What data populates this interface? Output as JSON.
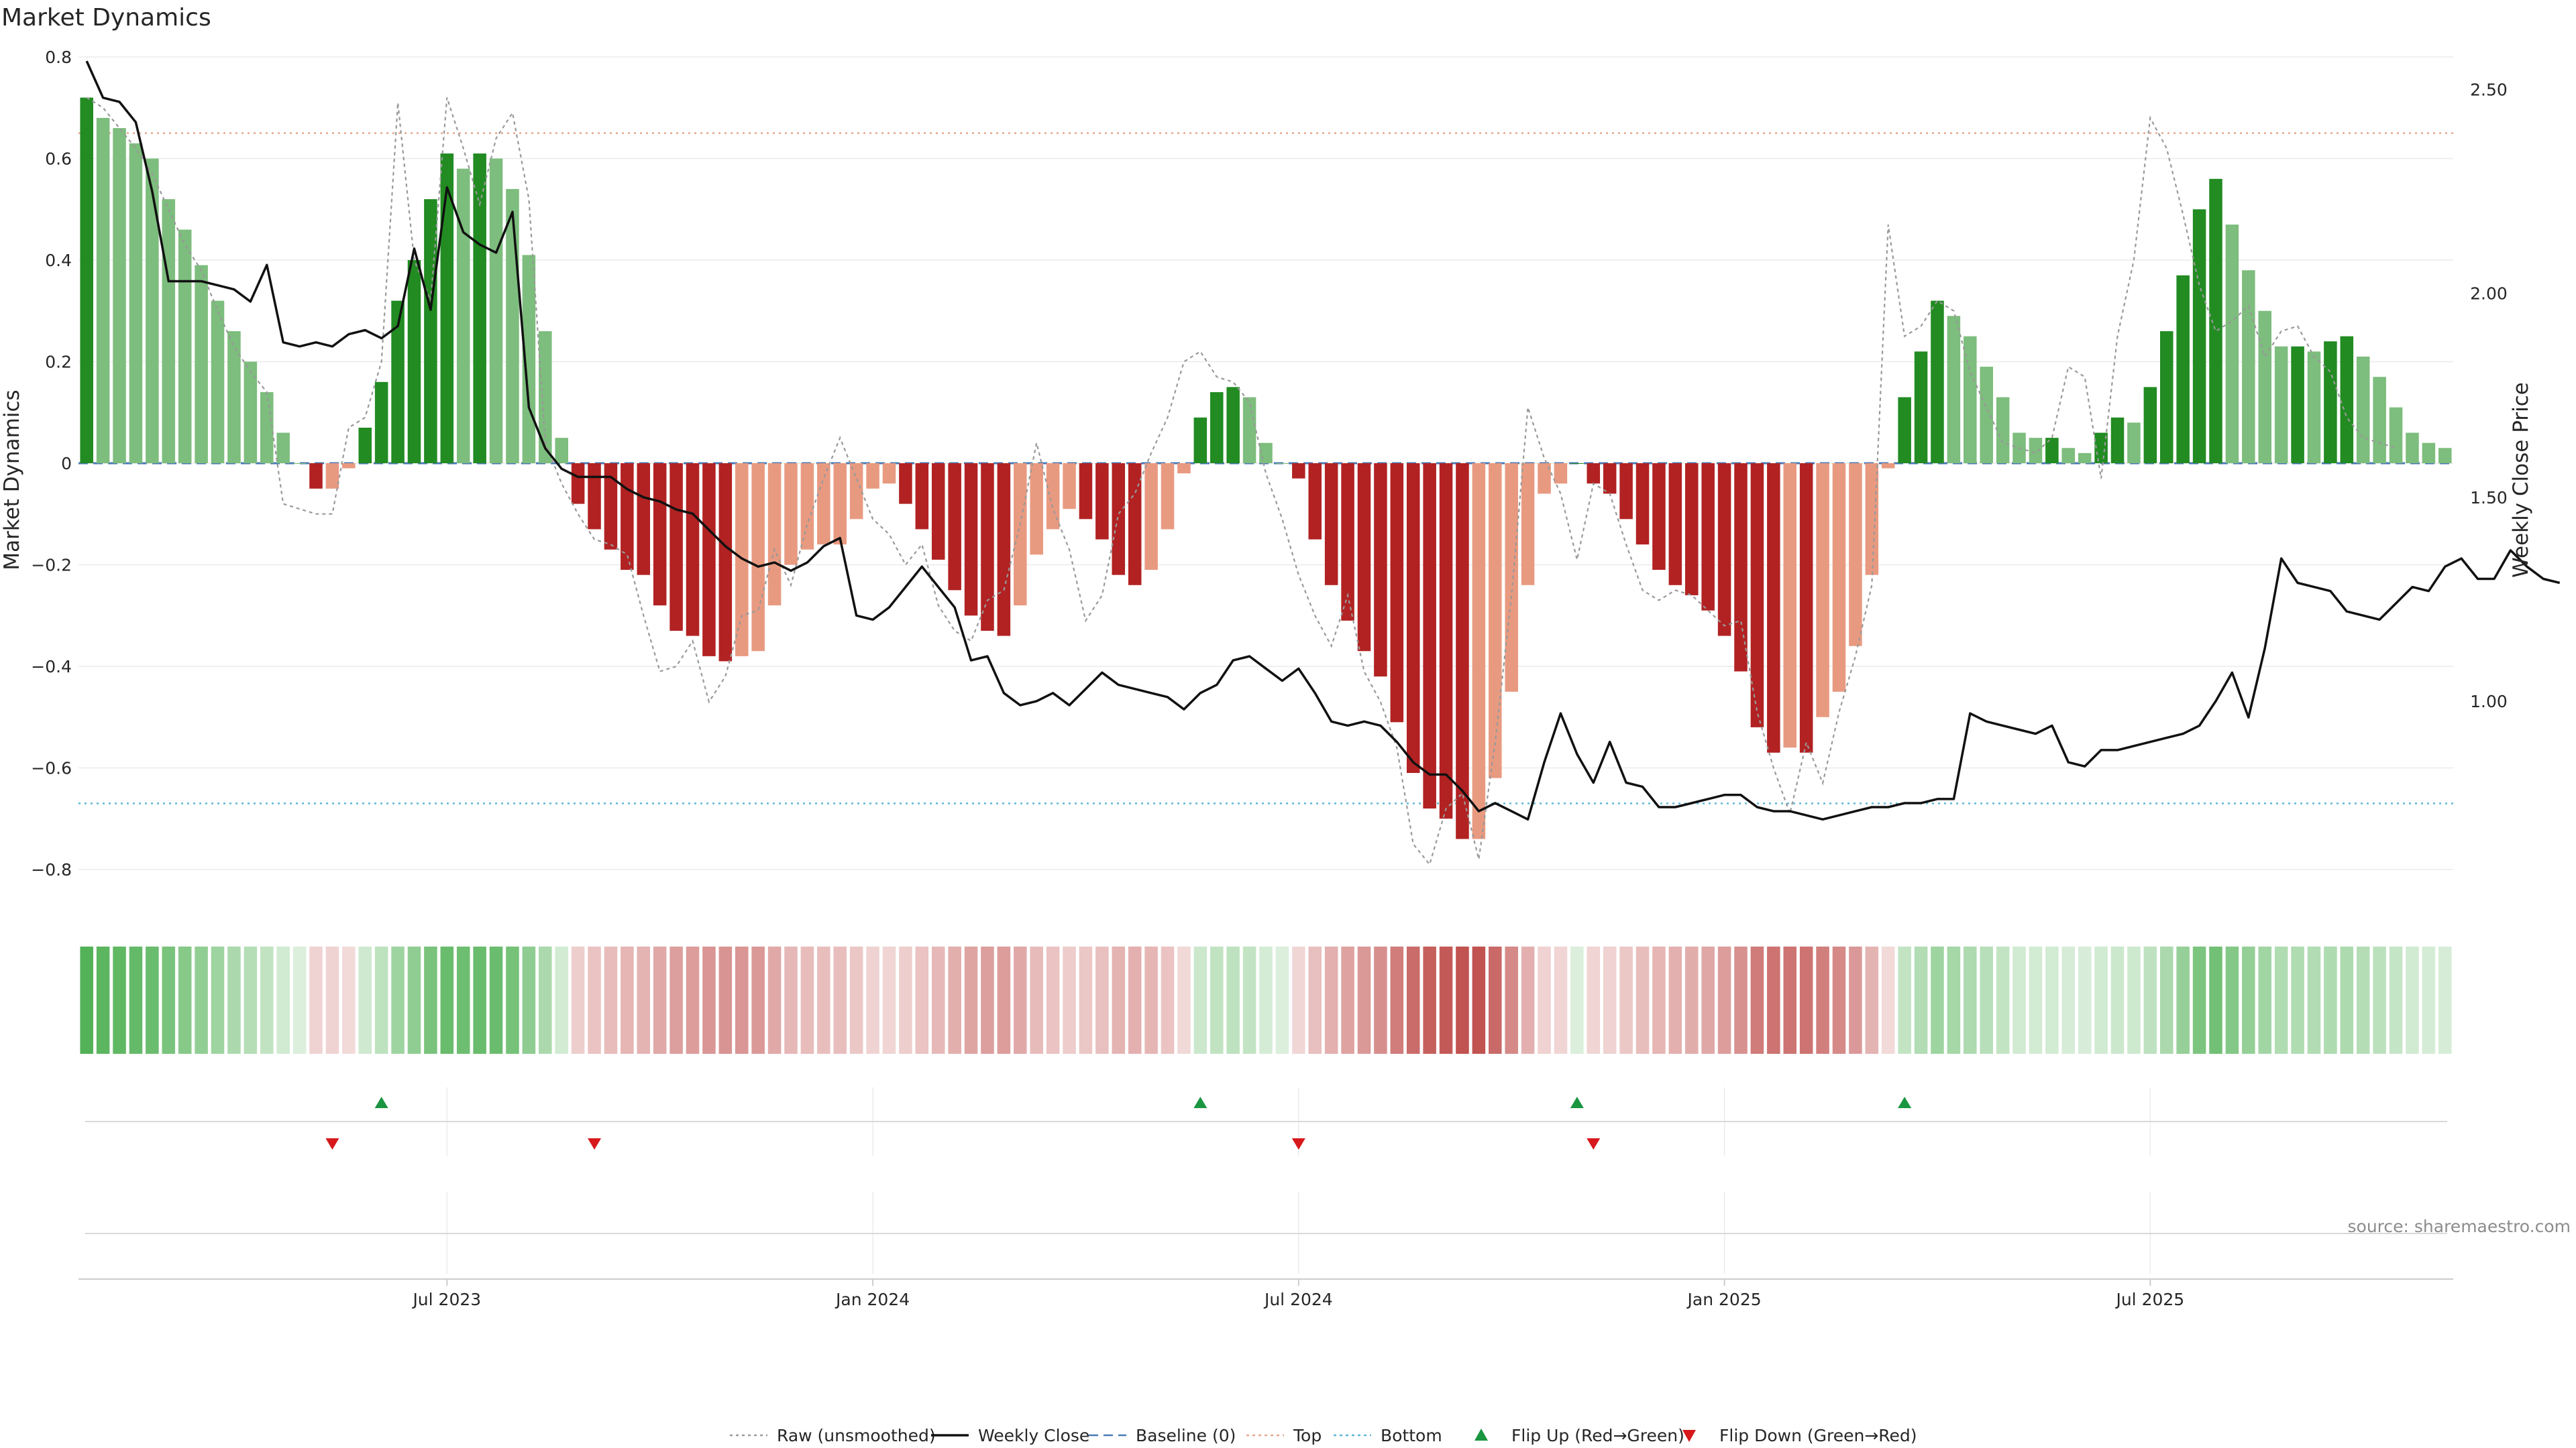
{
  "chart_data": {
    "type": "bar",
    "title": "Market Dynamics",
    "ylabel_left": "Market Dynamics",
    "ylabel_right": "Weekly Close Price",
    "ylim_left": [
      -0.87,
      0.8
    ],
    "ylim_right": [
      0.5,
      2.58
    ],
    "yticks_left": [
      0.8,
      0.6,
      0.4,
      0.2,
      0,
      -0.2,
      -0.4,
      -0.6,
      -0.8
    ],
    "yticks_left_labels": [
      "0.8",
      "0.6",
      "0.4",
      "0.2",
      "0",
      "−0.2",
      "−0.4",
      "−0.6",
      "−0.8"
    ],
    "yticks_right": [
      2.5,
      2.0,
      1.5,
      1.0
    ],
    "yticks_right_labels": [
      "2.50",
      "2.00",
      "1.50",
      "1.00"
    ],
    "x_ticks": [
      {
        "week": 22,
        "label": "Jul 2023"
      },
      {
        "week": 48,
        "label": "Jan 2024"
      },
      {
        "week": 74,
        "label": "Jul 2024"
      },
      {
        "week": 100,
        "label": "Jan 2025"
      },
      {
        "week": 126,
        "label": "Jul 2025"
      }
    ],
    "levels": {
      "top": 0.65,
      "bottom": -0.67,
      "baseline": 0
    },
    "market_dynamics": [
      0.72,
      0.68,
      0.66,
      0.63,
      0.6,
      0.52,
      0.46,
      0.39,
      0.32,
      0.26,
      0.2,
      0.14,
      0.06,
      0,
      -0.05,
      -0.05,
      -0.01,
      0.07,
      0.16,
      0.32,
      0.4,
      0.52,
      0.61,
      0.58,
      0.61,
      0.6,
      0.54,
      0.41,
      0.26,
      0.05,
      -0.08,
      -0.13,
      -0.17,
      -0.21,
      -0.22,
      -0.28,
      -0.33,
      -0.34,
      -0.38,
      -0.39,
      -0.38,
      -0.37,
      -0.28,
      -0.2,
      -0.17,
      -0.16,
      -0.16,
      -0.11,
      -0.05,
      -0.04,
      -0.08,
      -0.13,
      -0.19,
      -0.25,
      -0.3,
      -0.33,
      -0.34,
      -0.28,
      -0.18,
      -0.13,
      -0.09,
      -0.11,
      -0.15,
      -0.22,
      -0.24,
      -0.21,
      -0.13,
      -0.02,
      0.09,
      0.14,
      0.15,
      0.13,
      0.04,
      0,
      -0.03,
      -0.15,
      -0.24,
      -0.31,
      -0.37,
      -0.42,
      -0.51,
      -0.61,
      -0.68,
      -0.7,
      -0.74,
      -0.74,
      -0.62,
      -0.45,
      -0.24,
      -0.06,
      -0.04,
      0,
      -0.04,
      -0.06,
      -0.11,
      -0.16,
      -0.21,
      -0.24,
      -0.26,
      -0.29,
      -0.34,
      -0.41,
      -0.52,
      -0.57,
      -0.56,
      -0.57,
      -0.5,
      -0.45,
      -0.36,
      -0.22,
      -0.01,
      0.13,
      0.22,
      0.32,
      0.29,
      0.25,
      0.19,
      0.13,
      0.06,
      0.05,
      0.05,
      0.03,
      0.02,
      0.06,
      0.09,
      0.08,
      0.15,
      0.26,
      0.37,
      0.5,
      0.56,
      0.47,
      0.38,
      0.3,
      0.23,
      0.23,
      0.22,
      0.24,
      0.25,
      0.21,
      0.17,
      0.11,
      0.06,
      0.04,
      0.03
    ],
    "weekly_close": [
      2.57,
      2.48,
      2.47,
      2.42,
      2.25,
      2.03,
      2.03,
      2.03,
      2.02,
      2.01,
      1.98,
      2.07,
      1.88,
      1.87,
      1.88,
      1.87,
      1.9,
      1.91,
      1.89,
      1.92,
      2.11,
      1.96,
      2.26,
      2.15,
      2.12,
      2.1,
      2.2,
      1.72,
      1.62,
      1.57,
      1.55,
      1.55,
      1.55,
      1.52,
      1.5,
      1.49,
      1.47,
      1.46,
      1.42,
      1.38,
      1.35,
      1.33,
      1.34,
      1.32,
      1.34,
      1.38,
      1.4,
      1.21,
      1.2,
      1.23,
      1.28,
      1.33,
      1.28,
      1.23,
      1.1,
      1.11,
      1.02,
      0.99,
      1.0,
      1.02,
      0.99,
      1.03,
      1.07,
      1.04,
      1.03,
      1.02,
      1.01,
      0.98,
      1.02,
      1.04,
      1.1,
      1.11,
      1.08,
      1.05,
      1.08,
      1.02,
      0.95,
      0.94,
      0.95,
      0.94,
      0.9,
      0.85,
      0.82,
      0.82,
      0.78,
      0.73,
      0.75,
      0.73,
      0.71,
      0.85,
      0.97,
      0.87,
      0.8,
      0.9,
      0.8,
      0.79,
      0.74,
      0.74,
      0.75,
      0.76,
      0.77,
      0.77,
      0.74,
      0.73,
      0.73,
      0.72,
      0.71,
      0.72,
      0.73,
      0.74,
      0.74,
      0.75,
      0.75,
      0.76,
      0.76,
      0.97,
      0.95,
      0.94,
      0.93,
      0.92,
      0.94,
      0.85,
      0.84,
      0.88,
      0.88,
      0.89,
      0.9,
      0.91,
      0.92,
      0.94,
      1.0,
      1.07,
      0.96,
      1.13,
      1.35,
      1.29,
      1.28,
      1.27,
      1.22,
      1.21,
      1.2,
      1.24,
      1.28,
      1.27,
      1.33,
      1.35,
      1.3,
      1.3,
      1.37,
      1.33,
      1.3,
      1.29
    ],
    "raw_unsmoothed": [
      0.72,
      0.7,
      0.66,
      0.62,
      0.57,
      0.5,
      0.43,
      0.38,
      0.3,
      0.23,
      0.18,
      0.14,
      -0.08,
      -0.09,
      -0.1,
      -0.1,
      0.07,
      0.09,
      0.2,
      0.71,
      0.4,
      0.32,
      0.72,
      0.62,
      0.51,
      0.64,
      0.69,
      0.52,
      0.04,
      -0.04,
      -0.1,
      -0.15,
      -0.16,
      -0.18,
      -0.3,
      -0.41,
      -0.4,
      -0.35,
      -0.47,
      -0.42,
      -0.3,
      -0.29,
      -0.17,
      -0.24,
      -0.12,
      -0.03,
      0.05,
      -0.03,
      -0.11,
      -0.14,
      -0.2,
      -0.16,
      -0.28,
      -0.33,
      -0.35,
      -0.27,
      -0.25,
      -0.12,
      0.04,
      -0.09,
      -0.17,
      -0.31,
      -0.26,
      -0.1,
      -0.06,
      0.02,
      0.09,
      0.2,
      0.22,
      0.17,
      0.16,
      0.12,
      -0.02,
      -0.11,
      -0.22,
      -0.3,
      -0.36,
      -0.26,
      -0.41,
      -0.47,
      -0.56,
      -0.75,
      -0.79,
      -0.68,
      -0.65,
      -0.78,
      -0.55,
      -0.26,
      0.11,
      0.01,
      -0.06,
      -0.19,
      -0.04,
      -0.06,
      -0.16,
      -0.25,
      -0.27,
      -0.25,
      -0.26,
      -0.29,
      -0.32,
      -0.31,
      -0.49,
      -0.6,
      -0.69,
      -0.55,
      -0.63,
      -0.49,
      -0.38,
      -0.24,
      0.47,
      0.25,
      0.27,
      0.32,
      0.3,
      0.18,
      0.11,
      0.04,
      0.03,
      0.02,
      0.05,
      0.19,
      0.17,
      -0.03,
      0.25,
      0.4,
      0.68,
      0.62,
      0.49,
      0.35,
      0.26,
      0.28,
      0.31,
      0.21,
      0.26,
      0.27,
      0.21,
      0.18,
      0.09,
      0.05,
      0.04,
      0.03
    ],
    "flip_up": [
      18,
      68,
      91,
      111
    ],
    "flip_down": [
      15,
      31,
      74,
      92
    ],
    "legend": [
      {
        "label": "Raw (unsmoothed)",
        "kind": "dotted",
        "color": "#999999"
      },
      {
        "label": "Weekly Close",
        "kind": "solid",
        "color": "#111111"
      },
      {
        "label": "Baseline (0)",
        "kind": "dashed",
        "color": "#4a7ab5"
      },
      {
        "label": "Top",
        "kind": "dotted",
        "color": "#e8a78f"
      },
      {
        "label": "Bottom",
        "kind": "dotted",
        "color": "#5ab8d6"
      },
      {
        "label": "Flip Up (Red→Green)",
        "kind": "tri-up",
        "color": "#1a9641"
      },
      {
        "label": "Flip Down (Green→Red)",
        "kind": "tri-down",
        "color": "#d7191c"
      }
    ],
    "colors": {
      "strong_green": "#228b22",
      "light_green": "#7dbd7d",
      "strong_red": "#b22222",
      "light_red": "#e89a80",
      "heat_green": "#4caf50",
      "heat_red": "#c0504d",
      "baseline": "#4a7ab5",
      "top": "#e8a78f",
      "bottom": "#5ab8d6",
      "flip_up": "#1a9641",
      "flip_down": "#d7191c"
    }
  },
  "source": "source: sharemaestro.com"
}
